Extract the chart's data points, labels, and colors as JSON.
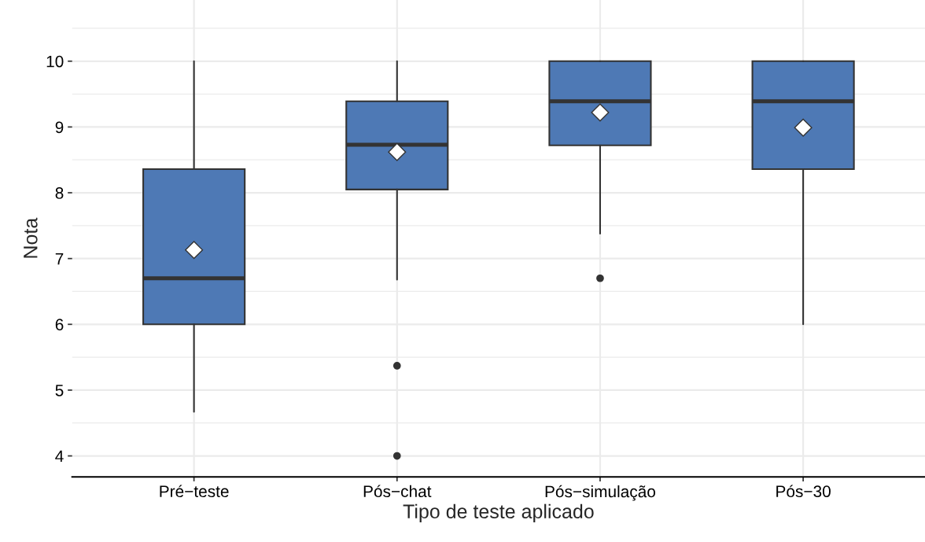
{
  "chart_data": {
    "type": "box",
    "xlabel": "Tipo de teste aplicado",
    "ylabel": "Nota",
    "categories": [
      "Pré−teste",
      "Pós−chat",
      "Pós−simulação",
      "Pós−30"
    ],
    "boxes": [
      {
        "low": 4.67,
        "q1": 6.0,
        "median": 6.7,
        "q3": 8.36,
        "high": 10.0,
        "mean": 7.13
      },
      {
        "low": 6.68,
        "q1": 8.05,
        "median": 8.73,
        "q3": 9.39,
        "high": 10.0,
        "mean": 8.62,
        "outliers": [
          5.37,
          4.0
        ]
      },
      {
        "low": 7.38,
        "q1": 8.72,
        "median": 9.39,
        "q3": 10.0,
        "high": 10.0,
        "mean": 9.22,
        "outliers": [
          6.7
        ]
      },
      {
        "low": 6.0,
        "q1": 8.36,
        "median": 9.39,
        "q3": 10.0,
        "high": 10.0,
        "mean": 8.99
      }
    ],
    "color": "#4e79b5",
    "ylim": [
      3.68,
      10.93
    ],
    "yticks": [
      4,
      5,
      6,
      7,
      8,
      9,
      10
    ],
    "grid": true,
    "marker": "diamond"
  }
}
